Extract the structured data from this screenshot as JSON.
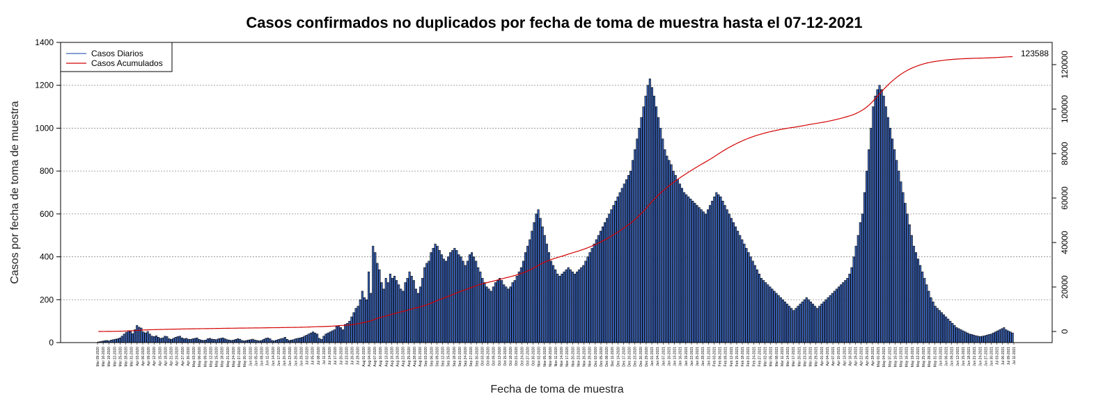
{
  "chart_data": {
    "type": "bar",
    "title": "Casos confirmados no duplicados por fecha de toma de muestra hasta el 07-12-2021",
    "xlabel": "Fecha de toma de muestra",
    "ylabel": "Casos por fecha de toma de muestra",
    "ylim": [
      0,
      1400
    ],
    "yticks": [
      0,
      200,
      400,
      600,
      800,
      1000,
      1200,
      1400
    ],
    "y2lim": [
      -5000,
      130000
    ],
    "y2ticks": [
      0,
      20000,
      40000,
      60000,
      80000,
      100000,
      120000
    ],
    "grid": "horizontal dotted",
    "legend_position": "top-left",
    "series": [
      {
        "name": "Casos Diarios",
        "color": "#3a63b8"
      },
      {
        "name": "Casos Acumulados",
        "color": "#d40000"
      }
    ],
    "cumulative_final_label": "123588",
    "x_tick_labels": [
      "Mar 09-2020",
      "Mar 16-2020",
      "Mar 19-2020",
      "Mar 22-2020",
      "Mar 25-2020",
      "Mar 28-2020",
      "Mar 31-2020",
      "Apr 03-2020",
      "Apr 06-2020",
      "Apr 09-2020",
      "Apr 12-2020",
      "Apr 15-2020",
      "Apr 18-2020",
      "Apr 21-2020",
      "Apr 24-2020",
      "Apr 27-2020",
      "Apr 30-2020",
      "May 03-2020",
      "May 06-2020",
      "May 09-2020",
      "May 12-2020",
      "May 15-2020",
      "May 18-2020",
      "May 21-2020",
      "May 24-2020",
      "May 27-2020",
      "May 30-2020",
      "Jun 02-2020",
      "Jun 05-2020",
      "Jun 08-2020",
      "Jun 11-2020",
      "Jun 14-2020",
      "Jun 17-2020",
      "Jun 20-2020",
      "Jun 23-2020",
      "Jun 26-2020",
      "Jun 29-2020",
      "Jul 02-2020",
      "Jul 05-2020",
      "Jul 08-2020",
      "Jul 11-2020",
      "Jul 14-2020",
      "Jul 17-2020",
      "Jul 20-2020",
      "Jul 23-2020",
      "Jul 26-2020",
      "Jul 29-2020",
      "Aug 01-2020",
      "Aug 04-2020",
      "Aug 07-2020",
      "Aug 10-2020",
      "Aug 13-2020",
      "Aug 16-2020",
      "Aug 19-2020",
      "Aug 22-2020",
      "Aug 25-2020",
      "Aug 28-2020",
      "Aug 31-2020",
      "Sep 03-2020",
      "Sep 06-2020",
      "Sep 09-2020",
      "Sep 12-2020",
      "Sep 15-2020",
      "Sep 18-2020",
      "Sep 21-2020",
      "Sep 24-2020",
      "Sep 27-2020",
      "Sep 30-2020",
      "Oct 03-2020",
      "Oct 06-2020",
      "Oct 09-2020",
      "Oct 12-2020",
      "Oct 15-2020",
      "Oct 18-2020",
      "Oct 21-2020",
      "Oct 24-2020",
      "Oct 27-2020",
      "Oct 30-2020",
      "Nov 02-2020",
      "Nov 05-2020",
      "Nov 08-2020",
      "Nov 11-2020",
      "Nov 14-2020",
      "Nov 17-2020",
      "Nov 20-2020",
      "Nov 23-2020",
      "Nov 26-2020",
      "Nov 29-2020",
      "Dec 02-2020",
      "Dec 05-2020",
      "Dec 08-2020",
      "Dec 11-2020",
      "Dec 14-2020",
      "Dec 17-2020",
      "Dec 20-2020",
      "Dec 23-2020",
      "Dec 26-2020",
      "Dec 29-2020",
      "Jan 01-2021",
      "Jan 04-2021",
      "Jan 07-2021",
      "Jan 10-2021",
      "Jan 13-2021",
      "Jan 16-2021",
      "Jan 19-2021",
      "Jan 22-2021",
      "Jan 25-2021",
      "Jan 28-2021",
      "Jan 31-2021",
      "Feb 03-2021",
      "Feb 06-2021",
      "Feb 09-2021",
      "Feb 12-2021",
      "Feb 15-2021",
      "Feb 18-2021",
      "Feb 21-2021",
      "Feb 24-2021",
      "Feb 27-2021",
      "Mar 02-2021",
      "Mar 05-2021",
      "Mar 08-2021",
      "Mar 11-2021",
      "Mar 14-2021",
      "Mar 17-2021",
      "Mar 20-2021",
      "Mar 23-2021",
      "Mar 26-2021",
      "Mar 29-2021",
      "Apr 01-2021",
      "Apr 04-2021",
      "Apr 07-2021",
      "Apr 10-2021",
      "Apr 13-2021",
      "Apr 16-2021",
      "Apr 19-2021",
      "Apr 22-2021",
      "Apr 25-2021",
      "Apr 28-2021",
      "May 01-2021",
      "May 04-2021",
      "May 07-2021",
      "May 10-2021",
      "May 13-2021",
      "May 16-2021",
      "May 19-2021",
      "May 22-2021",
      "May 25-2021",
      "May 28-2021",
      "May 31-2021",
      "Jun 03-2021",
      "Jun 06-2021",
      "Jun 09-2021",
      "Jun 12-2021",
      "Jun 15-2021",
      "Jun 18-2021",
      "Jun 21-2021",
      "Jun 24-2021",
      "Jun 27-2021",
      "Jun 30-2021",
      "Jul 03-2021",
      "Jul 06-2021",
      "Jul 09-2021",
      "Jul 11-2021"
    ],
    "bar_values": [
      3,
      5,
      7,
      9,
      10,
      8,
      12,
      14,
      16,
      18,
      22,
      30,
      40,
      48,
      55,
      52,
      42,
      60,
      80,
      72,
      68,
      50,
      45,
      52,
      40,
      30,
      28,
      32,
      25,
      20,
      22,
      30,
      28,
      18,
      15,
      20,
      25,
      28,
      30,
      22,
      18,
      20,
      16,
      15,
      18,
      20,
      22,
      15,
      12,
      10,
      12,
      18,
      20,
      16,
      15,
      14,
      18,
      20,
      22,
      18,
      14,
      12,
      10,
      12,
      15,
      18,
      16,
      10,
      8,
      10,
      12,
      14,
      16,
      12,
      10,
      8,
      10,
      15,
      20,
      22,
      18,
      10,
      8,
      12,
      15,
      18,
      20,
      25,
      15,
      10,
      12,
      14,
      18,
      20,
      22,
      25,
      30,
      35,
      40,
      45,
      50,
      45,
      40,
      20,
      15,
      30,
      40,
      45,
      50,
      55,
      60,
      75,
      80,
      70,
      60,
      85,
      90,
      100,
      120,
      140,
      160,
      170,
      200,
      240,
      210,
      200,
      330,
      230,
      450,
      420,
      370,
      340,
      280,
      250,
      300,
      280,
      320,
      300,
      310,
      290,
      270,
      250,
      240,
      280,
      300,
      330,
      310,
      290,
      250,
      230,
      260,
      300,
      350,
      370,
      380,
      420,
      440,
      460,
      450,
      430,
      410,
      390,
      380,
      400,
      420,
      430,
      440,
      430,
      410,
      400,
      380,
      360,
      380,
      410,
      420,
      400,
      380,
      350,
      330,
      300,
      280,
      260,
      250,
      240,
      260,
      280,
      290,
      300,
      290,
      270,
      260,
      250,
      260,
      280,
      290,
      310,
      330,
      350,
      380,
      420,
      450,
      480,
      520,
      560,
      600,
      620,
      580,
      540,
      500,
      460,
      420,
      380,
      360,
      340,
      320,
      310,
      320,
      330,
      340,
      350,
      340,
      330,
      320,
      330,
      340,
      350,
      360,
      380,
      400,
      420,
      440,
      460,
      480,
      500,
      520,
      540,
      560,
      580,
      600,
      620,
      640,
      660,
      680,
      700,
      720,
      740,
      760,
      780,
      800,
      850,
      900,
      950,
      1000,
      1050,
      1100,
      1150,
      1200,
      1230,
      1190,
      1150,
      1100,
      1050,
      1000,
      950,
      900,
      870,
      850,
      830,
      800,
      780,
      760,
      740,
      720,
      700,
      690,
      680,
      670,
      660,
      650,
      640,
      630,
      620,
      610,
      600,
      620,
      640,
      660,
      680,
      700,
      690,
      680,
      660,
      640,
      620,
      600,
      580,
      560,
      540,
      520,
      500,
      480,
      460,
      440,
      420,
      400,
      380,
      360,
      340,
      320,
      300,
      290,
      280,
      270,
      260,
      250,
      240,
      230,
      220,
      210,
      200,
      190,
      180,
      170,
      160,
      150,
      160,
      170,
      180,
      190,
      200,
      210,
      200,
      190,
      180,
      170,
      160,
      170,
      180,
      190,
      200,
      210,
      220,
      230,
      240,
      250,
      260,
      270,
      280,
      290,
      300,
      320,
      350,
      400,
      450,
      500,
      560,
      600,
      700,
      800,
      900,
      1000,
      1100,
      1150,
      1180,
      1200,
      1180,
      1150,
      1100,
      1050,
      1000,
      950,
      900,
      850,
      800,
      750,
      700,
      650,
      600,
      550,
      500,
      450,
      420,
      390,
      360,
      330,
      300,
      270,
      240,
      210,
      190,
      170,
      160,
      150,
      140,
      130,
      120,
      110,
      100,
      90,
      80,
      70,
      65,
      60,
      55,
      50,
      45,
      40,
      38,
      35,
      32,
      30,
      28,
      30,
      32,
      35,
      38,
      40,
      45,
      50,
      55,
      60,
      65,
      70,
      60,
      55,
      50,
      45
    ]
  }
}
